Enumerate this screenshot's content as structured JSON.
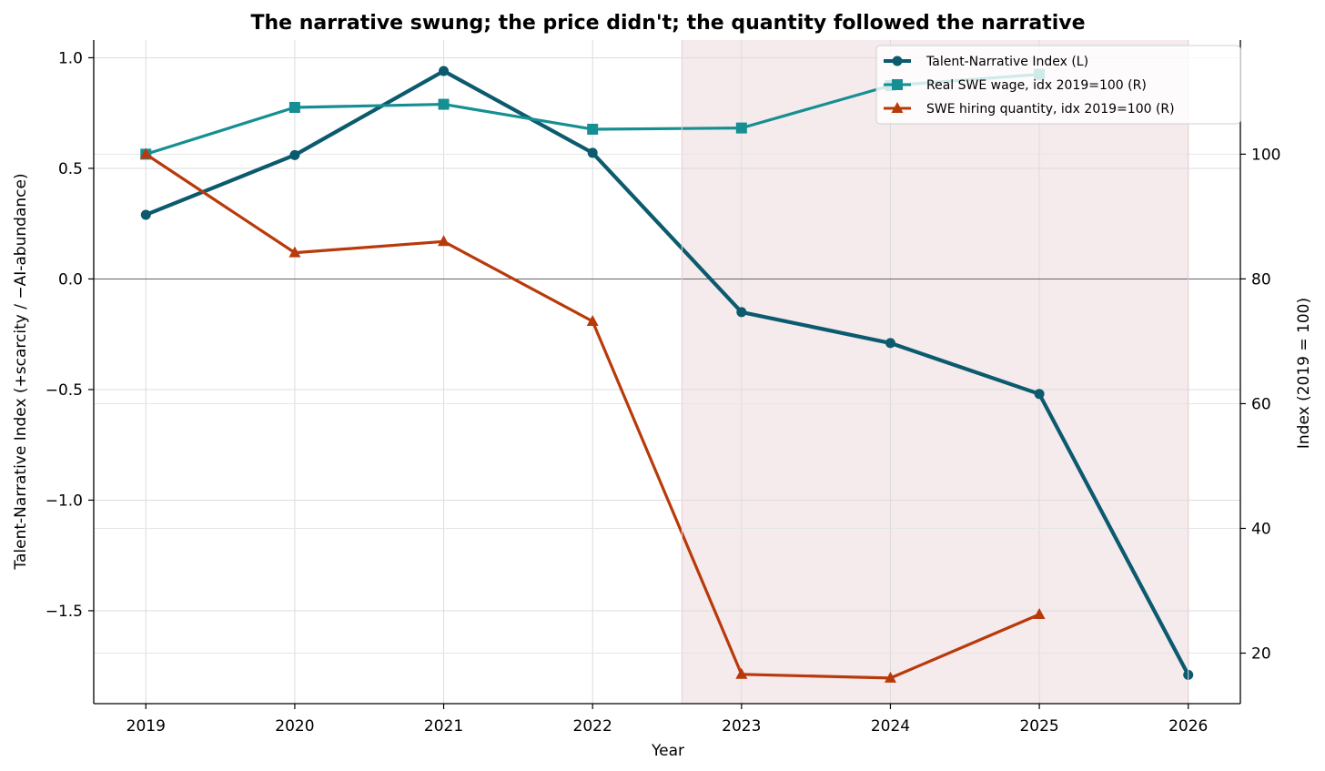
{
  "chart_data": {
    "type": "line",
    "title": "The narrative swung; the price didn't; the quantity followed the narrative",
    "xlabel": "Year",
    "ylabel_left": "Talent-Narrative Index  (+scarcity / −AI-abundance)",
    "ylabel_right": "Index (2019 = 100)",
    "x_ticks": [
      "2019",
      "2020",
      "2021",
      "2022",
      "2023",
      "2024",
      "2025",
      "2026"
    ],
    "xlim": [
      2018.65,
      2026.35
    ],
    "ylim_left": [
      -1.92,
      1.08
    ],
    "ylim_right": [
      11.9,
      118.3
    ],
    "y_ticks_left": [
      {
        "value": 1.0,
        "label": "1.0"
      },
      {
        "value": 0.5,
        "label": "0.5"
      },
      {
        "value": 0.0,
        "label": "0.0"
      },
      {
        "value": -0.5,
        "label": "−0.5"
      },
      {
        "value": -1.0,
        "label": "−1.0"
      },
      {
        "value": -1.5,
        "label": "−1.5"
      }
    ],
    "y_ticks_right": [
      {
        "value": 100,
        "label": "100"
      },
      {
        "value": 80,
        "label": "80"
      },
      {
        "value": 60,
        "label": "60"
      },
      {
        "value": 40,
        "label": "40"
      },
      {
        "value": 20,
        "label": "20"
      }
    ],
    "shaded_region": {
      "x_start": 2022.6,
      "x_end": 2026,
      "color": "#f5eaec"
    },
    "zero_line": true,
    "grid": true,
    "legend_position": "top-right",
    "series": [
      {
        "name": "Talent-Narrative Index (L)",
        "axis": "left",
        "color": "#0b5a6e",
        "marker": "circle",
        "x": [
          2019,
          2020,
          2021,
          2022,
          2023,
          2024,
          2025,
          2026
        ],
        "values": [
          0.29,
          0.56,
          0.94,
          0.57,
          -0.15,
          -0.29,
          -0.52,
          -1.79
        ]
      },
      {
        "name": "Real SWE wage, idx 2019=100 (R)",
        "axis": "right",
        "color": "#158f92",
        "marker": "square",
        "x": [
          2019,
          2020,
          2021,
          2022,
          2023,
          2024,
          2025
        ],
        "values": [
          100.0,
          107.5,
          108.0,
          104.0,
          104.2,
          111.0,
          112.8
        ]
      },
      {
        "name": "SWE hiring quantity, idx 2019=100 (R)",
        "axis": "right",
        "color": "#b83a0b",
        "marker": "triangle",
        "x": [
          2019,
          2020,
          2021,
          2022,
          2023,
          2024,
          2025
        ],
        "values": [
          100.0,
          84.2,
          86.0,
          73.2,
          16.6,
          16.0,
          26.2
        ]
      }
    ]
  }
}
